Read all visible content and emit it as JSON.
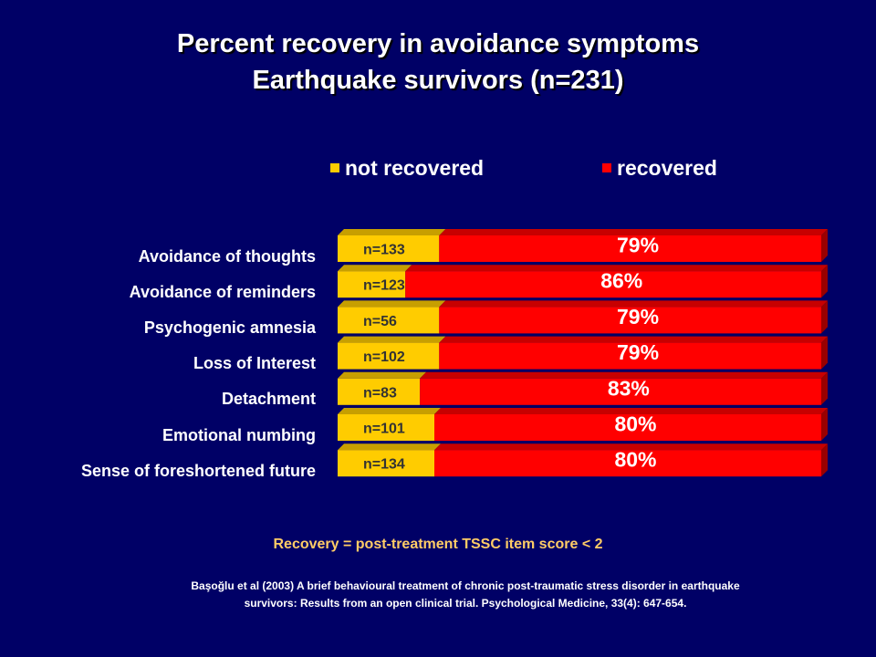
{
  "title": {
    "line1": "Percent recovery in avoidance symptoms",
    "line2": "Earthquake survivors (n=231)"
  },
  "colors": {
    "background": "#000066",
    "not_recovered": "#ffcc00",
    "recovered": "#ff0000",
    "footnote": "#ffcc66"
  },
  "chart_data": {
    "type": "bar",
    "orientation": "horizontal",
    "stacked": true,
    "percent_stacked": true,
    "categories": [
      "Avoidance of thoughts",
      "Avoidance of reminders",
      "Psychogenic amnesia",
      "Loss of Interest",
      "Detachment",
      "Emotional numbing",
      "Sense of foreshortened future"
    ],
    "series": [
      {
        "name": "not recovered",
        "values": [
          21,
          14,
          21,
          21,
          17,
          20,
          20
        ],
        "labels": [
          "n=133",
          "n=123",
          "n=56",
          "n=102",
          "n=83",
          "n=101",
          "n=134"
        ]
      },
      {
        "name": "recovered",
        "values": [
          79,
          86,
          79,
          79,
          83,
          80,
          80
        ],
        "labels": [
          "79%",
          "86%",
          "79%",
          "79%",
          "83%",
          "80%",
          "80%"
        ]
      }
    ],
    "xlim": [
      0,
      100
    ],
    "legend_position": "top",
    "grid": false
  },
  "footnote": "Recovery = post-treatment TSSC item score < 2",
  "citation": {
    "line1": "Başoğlu et al (2003) A brief behavioural treatment of chronic post-traumatic stress disorder in earthquake",
    "line2": "survivors: Results from an open clinical trial. Psychological Medicine, 33(4): 647-654."
  }
}
